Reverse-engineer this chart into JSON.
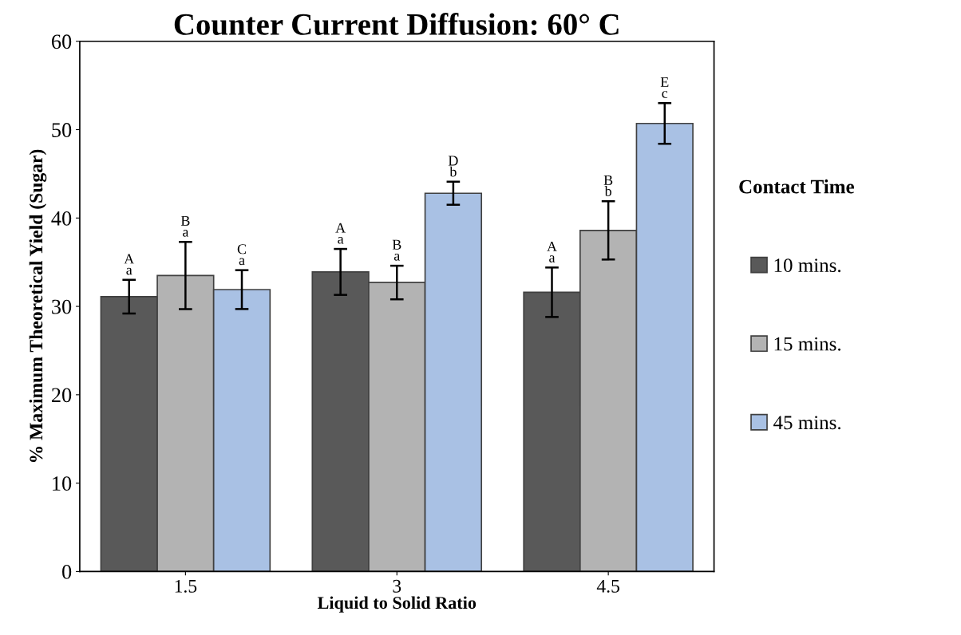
{
  "chart_data": {
    "type": "bar",
    "title": "Counter Current Diffusion: 60° C",
    "xlabel": "Liquid to Solid Ratio",
    "ylabel": "% Maximum Theoretical Yield (Sugar)",
    "legend_title": "Contact Time",
    "categories": [
      "1.5",
      "3",
      "4.5"
    ],
    "series": [
      {
        "name": "10 mins.",
        "color": "#595959",
        "values": [
          31.1,
          33.9,
          31.6
        ],
        "errors": [
          1.9,
          2.6,
          2.8
        ],
        "value_labels": [
          "A\na",
          "A\na",
          "A\na"
        ]
      },
      {
        "name": "15 mins.",
        "color": "#b3b3b3",
        "values": [
          33.5,
          32.7,
          38.6
        ],
        "errors": [
          3.8,
          1.9,
          3.3
        ],
        "value_labels": [
          "B\na",
          "B\na",
          "B\nb"
        ]
      },
      {
        "name": "45 mins.",
        "color": "#a9c1e4",
        "values": [
          31.9,
          42.8,
          50.7
        ],
        "errors": [
          2.2,
          1.3,
          2.3
        ],
        "value_labels": [
          "C\na",
          "D\nb",
          "E\nc"
        ]
      }
    ],
    "ylim": [
      0,
      60
    ],
    "yticks": [
      0,
      10,
      20,
      30,
      40,
      50,
      60
    ],
    "grid": false,
    "legend": "right"
  }
}
